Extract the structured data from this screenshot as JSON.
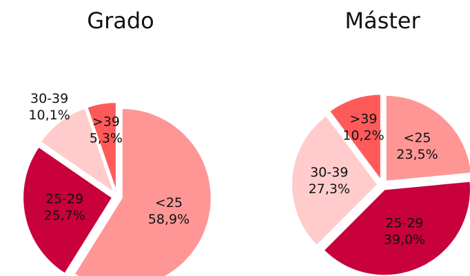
{
  "chart_data": [
    {
      "type": "pie",
      "title": "Grado",
      "categories": [
        "<25",
        "25-29",
        "30-39",
        ">39"
      ],
      "values": [
        58.9,
        25.7,
        10.1,
        5.3
      ],
      "value_labels": [
        "58,9%",
        "25,7%",
        "10,1%",
        "5,3%"
      ],
      "colors": [
        "#ff9696",
        "#c8003c",
        "#ffcbcb",
        "#ff5a5a"
      ]
    },
    {
      "type": "pie",
      "title": "Máster",
      "categories": [
        "<25",
        "25-29",
        "30-39",
        ">39"
      ],
      "values": [
        23.5,
        39.0,
        27.3,
        10.2
      ],
      "value_labels": [
        "23,5%",
        "39,0%",
        "27,3%",
        "10,2%"
      ],
      "colors": [
        "#ff9696",
        "#c8003c",
        "#ffcbcb",
        "#ff5a5a"
      ]
    }
  ]
}
